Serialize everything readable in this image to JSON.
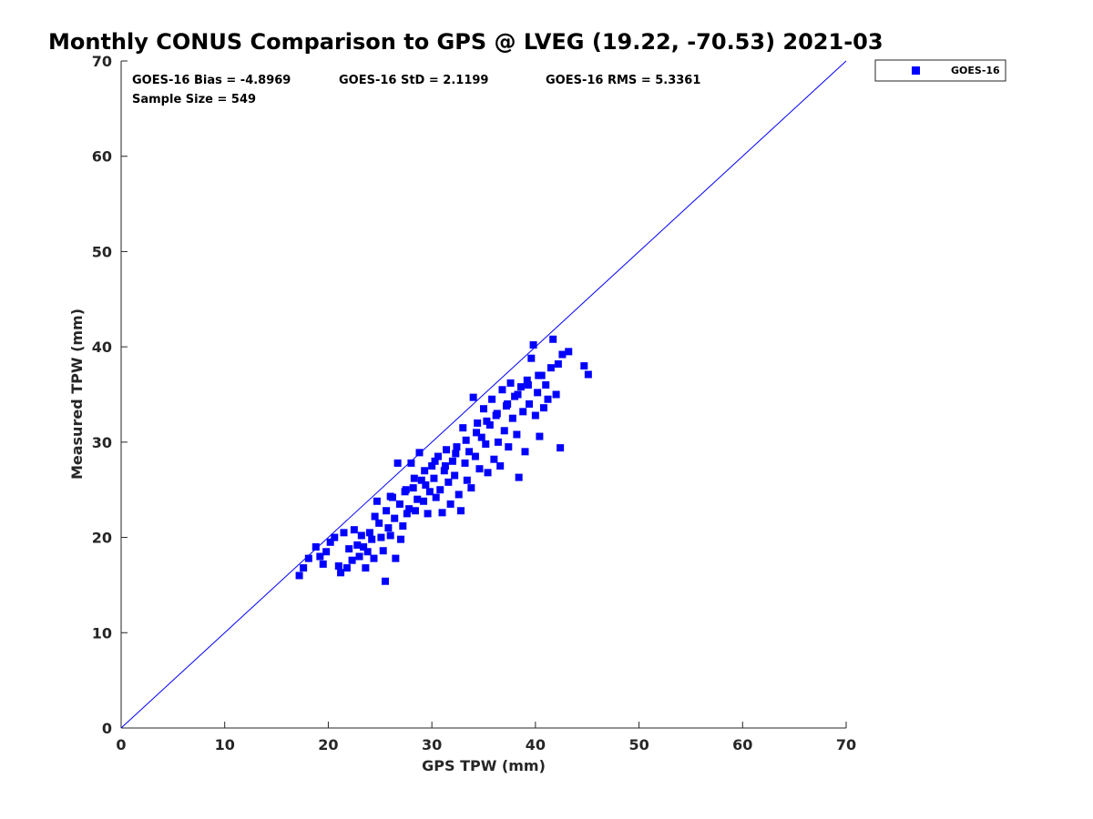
{
  "chart_data": {
    "type": "scatter",
    "title": "Monthly CONUS Comparison to GPS @ LVEG (19.22, -70.53) 2021-03",
    "xlabel": "GPS TPW (mm)",
    "ylabel": "Measured TPW (mm)",
    "xlim": [
      0,
      70
    ],
    "ylim": [
      0,
      70
    ],
    "x_ticks": [
      "0",
      "10",
      "20",
      "30",
      "40",
      "50",
      "60",
      "70"
    ],
    "y_ticks": [
      "0",
      "10",
      "20",
      "30",
      "40",
      "50",
      "60",
      "70"
    ],
    "grid": false,
    "legend_position": "outside-top-right",
    "reference_line": {
      "from": [
        0,
        0
      ],
      "to": [
        70,
        70
      ],
      "color": "#0000ff"
    },
    "stats": {
      "bias": "GOES-16 Bias = -4.8969",
      "std": "GOES-16 StD = 2.1199",
      "rms": "GOES-16 RMS = 5.3361",
      "sample": "Sample Size = 549"
    },
    "series": [
      {
        "name": "GOES-16",
        "color": "#0000ff",
        "marker": "square",
        "points": [
          [
            17.2,
            16.0
          ],
          [
            17.6,
            16.8
          ],
          [
            18.1,
            17.8
          ],
          [
            18.8,
            19.0
          ],
          [
            19.2,
            18.0
          ],
          [
            19.5,
            17.2
          ],
          [
            19.8,
            18.5
          ],
          [
            20.2,
            19.5
          ],
          [
            20.6,
            20.0
          ],
          [
            21.0,
            17.0
          ],
          [
            21.2,
            16.3
          ],
          [
            21.5,
            20.5
          ],
          [
            21.8,
            16.8
          ],
          [
            22.0,
            18.8
          ],
          [
            22.3,
            17.6
          ],
          [
            22.5,
            20.8
          ],
          [
            22.8,
            19.2
          ],
          [
            23.0,
            18.0
          ],
          [
            23.2,
            20.2
          ],
          [
            23.4,
            19.0
          ],
          [
            23.6,
            16.8
          ],
          [
            23.8,
            18.5
          ],
          [
            24.0,
            20.5
          ],
          [
            24.2,
            19.8
          ],
          [
            24.4,
            17.8
          ],
          [
            24.5,
            22.2
          ],
          [
            24.7,
            23.8
          ],
          [
            24.9,
            21.5
          ],
          [
            25.1,
            20.0
          ],
          [
            25.3,
            18.6
          ],
          [
            25.5,
            15.4
          ],
          [
            25.6,
            22.8
          ],
          [
            25.8,
            21.0
          ],
          [
            26.0,
            20.2
          ],
          [
            26.2,
            24.2
          ],
          [
            26.4,
            22.0
          ],
          [
            26.5,
            17.8
          ],
          [
            26.7,
            27.8
          ],
          [
            26.9,
            23.5
          ],
          [
            27.0,
            19.8
          ],
          [
            27.2,
            21.2
          ],
          [
            27.4,
            24.8
          ],
          [
            27.6,
            22.5
          ],
          [
            27.8,
            23.0
          ],
          [
            28.0,
            27.8
          ],
          [
            28.2,
            25.2
          ],
          [
            28.4,
            22.8
          ],
          [
            28.6,
            24.0
          ],
          [
            28.8,
            28.9
          ],
          [
            29.0,
            26.0
          ],
          [
            29.2,
            23.8
          ],
          [
            29.4,
            25.5
          ],
          [
            29.6,
            22.5
          ],
          [
            29.8,
            24.8
          ],
          [
            30.0,
            27.5
          ],
          [
            30.2,
            26.2
          ],
          [
            30.4,
            24.2
          ],
          [
            30.6,
            28.5
          ],
          [
            30.8,
            25.0
          ],
          [
            31.0,
            22.6
          ],
          [
            31.2,
            27.0
          ],
          [
            31.4,
            29.2
          ],
          [
            31.6,
            25.8
          ],
          [
            31.8,
            23.5
          ],
          [
            32.0,
            28.0
          ],
          [
            32.2,
            26.5
          ],
          [
            32.4,
            29.5
          ],
          [
            32.6,
            24.5
          ],
          [
            32.8,
            22.8
          ],
          [
            33.0,
            31.5
          ],
          [
            33.2,
            27.8
          ],
          [
            33.4,
            26.0
          ],
          [
            33.6,
            29.0
          ],
          [
            33.8,
            25.2
          ],
          [
            34.0,
            34.7
          ],
          [
            34.2,
            28.5
          ],
          [
            34.4,
            32.0
          ],
          [
            34.6,
            27.2
          ],
          [
            34.8,
            30.5
          ],
          [
            35.0,
            33.5
          ],
          [
            35.2,
            29.8
          ],
          [
            35.4,
            26.8
          ],
          [
            35.6,
            31.8
          ],
          [
            35.8,
            34.5
          ],
          [
            36.0,
            28.2
          ],
          [
            36.2,
            32.8
          ],
          [
            36.4,
            30.0
          ],
          [
            36.6,
            27.5
          ],
          [
            36.8,
            35.5
          ],
          [
            37.0,
            31.2
          ],
          [
            37.2,
            33.8
          ],
          [
            37.4,
            29.5
          ],
          [
            37.6,
            36.2
          ],
          [
            37.8,
            32.5
          ],
          [
            38.0,
            34.8
          ],
          [
            38.2,
            30.8
          ],
          [
            38.4,
            26.3
          ],
          [
            38.6,
            35.8
          ],
          [
            38.8,
            33.2
          ],
          [
            39.0,
            29.0
          ],
          [
            39.2,
            36.5
          ],
          [
            39.4,
            34.0
          ],
          [
            39.6,
            38.8
          ],
          [
            39.8,
            40.2
          ],
          [
            40.0,
            32.8
          ],
          [
            40.2,
            35.2
          ],
          [
            40.4,
            30.6
          ],
          [
            40.6,
            37.0
          ],
          [
            40.8,
            33.6
          ],
          [
            41.0,
            36.0
          ],
          [
            41.2,
            34.5
          ],
          [
            41.5,
            37.8
          ],
          [
            41.7,
            40.8
          ],
          [
            42.0,
            35.0
          ],
          [
            42.2,
            38.2
          ],
          [
            42.4,
            29.4
          ],
          [
            42.6,
            39.2
          ],
          [
            43.2,
            39.5
          ],
          [
            44.7,
            38.0
          ],
          [
            45.1,
            37.1
          ],
          [
            26.0,
            24.3
          ],
          [
            27.5,
            25.0
          ],
          [
            28.3,
            26.2
          ],
          [
            29.3,
            27.0
          ],
          [
            30.3,
            28.0
          ],
          [
            31.3,
            27.5
          ],
          [
            32.3,
            28.8
          ],
          [
            33.3,
            30.2
          ],
          [
            34.3,
            31.0
          ],
          [
            35.3,
            32.2
          ],
          [
            36.3,
            33.0
          ],
          [
            37.3,
            34.0
          ],
          [
            38.3,
            35.0
          ],
          [
            39.3,
            36.0
          ],
          [
            40.3,
            37.0
          ]
        ]
      }
    ]
  }
}
